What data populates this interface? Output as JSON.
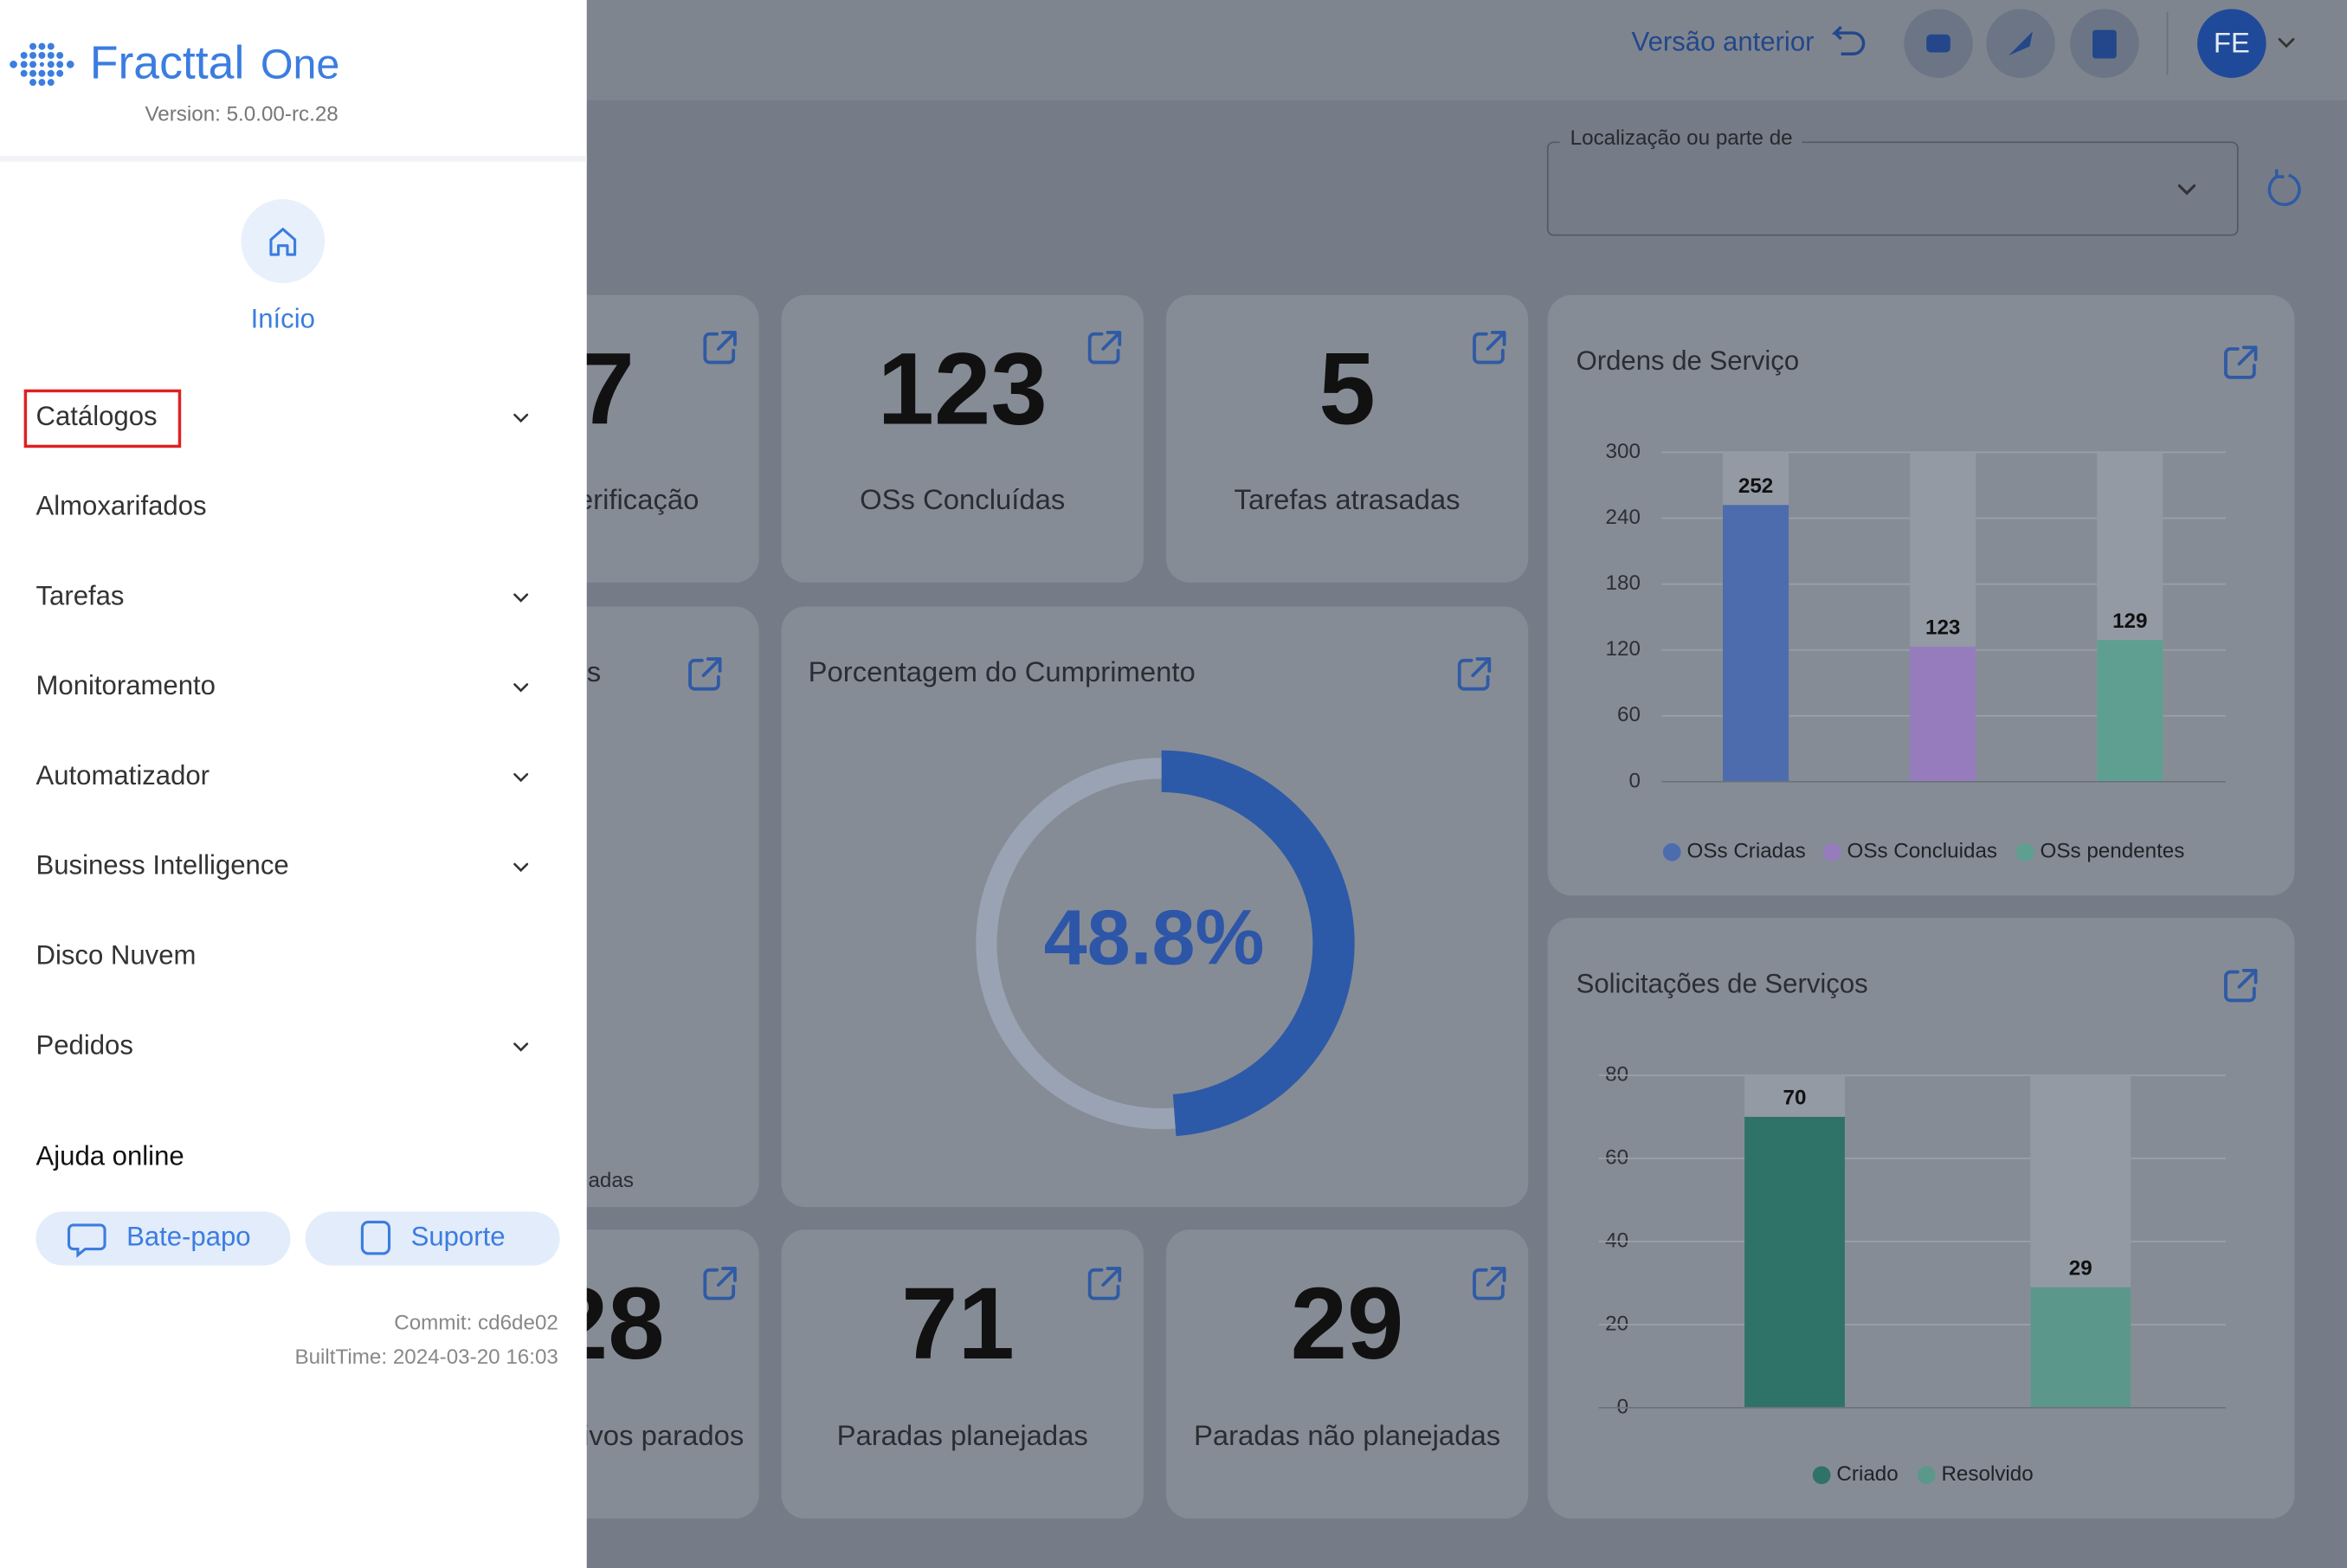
{
  "sidebar": {
    "brand": "Fracttal",
    "brand_suffix": "One",
    "version": "Version: 5.0.00-rc.28",
    "home": "Início",
    "menu": [
      {
        "label": "Catálogos",
        "expandable": true,
        "highlighted": true
      },
      {
        "label": "Almoxarifados",
        "expandable": false
      },
      {
        "label": "Tarefas",
        "expandable": true
      },
      {
        "label": "Monitoramento",
        "expandable": true
      },
      {
        "label": "Automatizador",
        "expandable": true
      },
      {
        "label": "Business Intelligence",
        "expandable": true
      },
      {
        "label": "Disco Nuvem",
        "expandable": false
      },
      {
        "label": "Pedidos",
        "expandable": true
      }
    ],
    "help_title": "Ajuda online",
    "buttons": [
      "Bate-papo",
      "Suporte"
    ],
    "commit": "Commit: cd6de02",
    "build_time": "BuiltTime: 2024-03-20 16:03"
  },
  "header": {
    "previous_version": "Versão anterior",
    "avatar": "FE"
  },
  "filter": {
    "label": "Localização ou parte de"
  },
  "kpis": [
    {
      "value": 7,
      "label": "erificação"
    },
    {
      "value": 123,
      "label": "OSs Concluídas"
    },
    {
      "value": 5,
      "label": "Tarefas atrasadas"
    },
    {
      "value": 28,
      "label": "ivos parados"
    },
    {
      "value": 71,
      "label": "Paradas planejadas"
    },
    {
      "value": 29,
      "label": "Paradas não planejadas"
    }
  ],
  "partial_card": {
    "title": "s",
    "footer": "adas"
  },
  "gauge": {
    "title": "Porcentagem do Cumprimento",
    "value": 48.8,
    "value_label": "48.8%",
    "max": 100,
    "color": "#2d5aa8"
  },
  "chart_data": [
    {
      "type": "bar",
      "title": "Ordens de Serviço",
      "series": [
        {
          "name": "OSs Criadas",
          "color": "#4d6cae",
          "values": [
            252
          ]
        },
        {
          "name": "OSs Concluidas",
          "color": "#967cbd",
          "values": [
            123
          ]
        },
        {
          "name": "OSs pendentes",
          "color": "#5e9f91",
          "values": [
            129
          ]
        }
      ],
      "ylim": [
        0,
        300
      ],
      "yticks": [
        0,
        60,
        120,
        180,
        240,
        300
      ],
      "grid": true
    },
    {
      "type": "bar",
      "title": "Solicitações de Serviços",
      "series": [
        {
          "name": "Criado",
          "color": "#2f7268",
          "values": [
            70
          ]
        },
        {
          "name": "Resolvido",
          "color": "#5b988b",
          "values": [
            29
          ]
        }
      ],
      "ylim": [
        0,
        80
      ],
      "yticks": [
        0,
        20,
        40,
        60,
        80
      ],
      "grid": true
    }
  ]
}
